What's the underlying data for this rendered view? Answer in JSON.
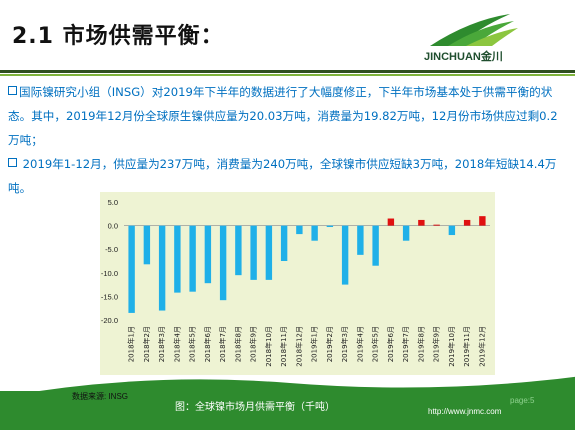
{
  "title": "2.1 市场供需平衡：",
  "logo": {
    "text": "JINCHUAN金川"
  },
  "colors": {
    "body_text": "#0070c0",
    "bar_negative": "#1fb0e8",
    "bar_positive": "#e01010",
    "green_band": "#2e8b2e",
    "chart_bg": "#eef3d3"
  },
  "paragraphs": [
    {
      "bullet": "square-bullet-icon",
      "text": "国际镍研究小组（INSG）对2019年下半年的数据进行了大幅度修正，下半年市场基本处于供需平衡的状态。其中，2019年12月份全球原生镍供应量为20.03万吨，消费量为19.82万吨，12月份市场供应过剩0.2万吨；"
    },
    {
      "bullet": "square-bullet-icon",
      "text": " 2019年1-12月，供应量为237万吨，消费量为240万吨，全球镍市供应短缺3万吨，2018年短缺14.4万吨。"
    }
  ],
  "footer": {
    "source": "数据来源: INSG",
    "caption": "图：全球镍市场月供需平衡（千吨）",
    "page": "page:5",
    "url": "http://www.jnmc.com"
  },
  "chart_data": {
    "type": "bar",
    "title": "",
    "xlabel": "",
    "ylabel": "",
    "ylim": [
      -20,
      5
    ],
    "yticks": [
      5.0,
      0.0,
      -5.0,
      -10.0,
      -15.0,
      -20.0
    ],
    "grid": false,
    "legend": "none",
    "categories": [
      "2018年1月",
      "2018年2月",
      "2018年3月",
      "2018年4月",
      "2018年5月",
      "2018年6月",
      "2018年7月",
      "2018年8月",
      "2018年9月",
      "2018年10月",
      "2018年11月",
      "2018年12月",
      "2019年1月",
      "2019年2月",
      "2019年3月",
      "2019年4月",
      "2019年5月",
      "2019年6月",
      "2019年7月",
      "2019年8月",
      "2019年9月",
      "2019年10月",
      "2019年11月",
      "2019年12月"
    ],
    "values": [
      -18.5,
      -8.2,
      -18.0,
      -14.2,
      -14.0,
      -12.2,
      -15.8,
      -10.5,
      -11.5,
      -11.5,
      -7.5,
      -1.8,
      -3.2,
      -0.3,
      -12.5,
      -6.2,
      -8.5,
      1.5,
      -3.2,
      1.2,
      0.2,
      -2.0,
      1.2,
      2.0
    ]
  }
}
